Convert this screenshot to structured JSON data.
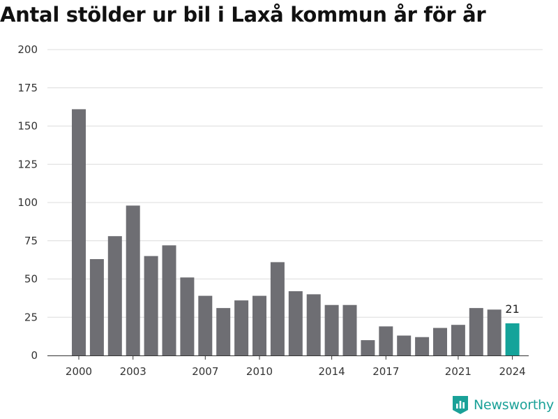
{
  "chart_data": {
    "type": "bar",
    "title": "Antal stölder ur bil i Laxå kommun år för år",
    "x": [
      2000,
      2001,
      2002,
      2003,
      2004,
      2005,
      2006,
      2007,
      2008,
      2009,
      2010,
      2011,
      2012,
      2013,
      2014,
      2015,
      2016,
      2017,
      2018,
      2019,
      2020,
      2021,
      2022,
      2023,
      2024
    ],
    "values": [
      161,
      63,
      78,
      98,
      65,
      72,
      51,
      39,
      31,
      36,
      39,
      61,
      42,
      40,
      33,
      33,
      10,
      19,
      13,
      12,
      18,
      20,
      31,
      30,
      21
    ],
    "x_tick_labels": [
      "2000",
      "2003",
      "2007",
      "2010",
      "2014",
      "2017",
      "2021",
      "2024"
    ],
    "y_tick_labels": [
      "0",
      "25",
      "50",
      "75",
      "100",
      "125",
      "150",
      "175",
      "200"
    ],
    "ylim": [
      0,
      200
    ],
    "grid": true,
    "bar_color": "#6e6e73",
    "highlight_color": "#14a39a",
    "highlight_x": 2024,
    "highlight_label": "21",
    "xlabel": "",
    "ylabel": ""
  },
  "brand": {
    "name": "Newsworthy",
    "color": "#1aa198"
  }
}
